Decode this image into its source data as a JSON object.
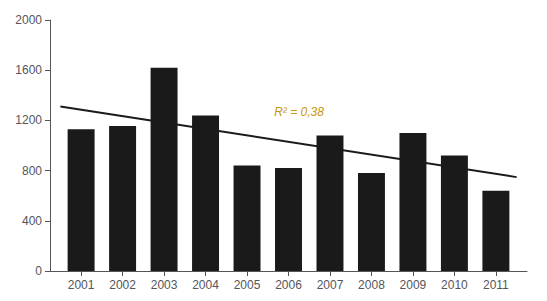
{
  "chart_data": {
    "type": "bar",
    "x": [
      2001,
      2002,
      2003,
      2004,
      2005,
      2006,
      2007,
      2008,
      2009,
      2010,
      2011
    ],
    "series": [
      {
        "type": "bar",
        "color": "#1a1a1a",
        "values": [
          1130,
          1155,
          1620,
          1240,
          840,
          820,
          1080,
          780,
          1100,
          920,
          640
        ]
      },
      {
        "type": "line",
        "color": "#1a1a1a",
        "x": [
          2000.5,
          2011.5
        ],
        "values": [
          1311.0454545454545,
          748.0454545454545
        ]
      }
    ],
    "xlim": [
      2000.25,
      2011.75
    ],
    "xticks": [
      2001,
      2002,
      2003,
      2004,
      2005,
      2006,
      2007,
      2008,
      2009,
      2010,
      2011
    ],
    "ylim": [
      0,
      2000
    ],
    "yticks": [
      0,
      400,
      800,
      1200,
      1600,
      2000
    ],
    "annotations": [
      {
        "text": "R² = 0,38",
        "color": "#c8960a"
      }
    ],
    "grid": false
  }
}
